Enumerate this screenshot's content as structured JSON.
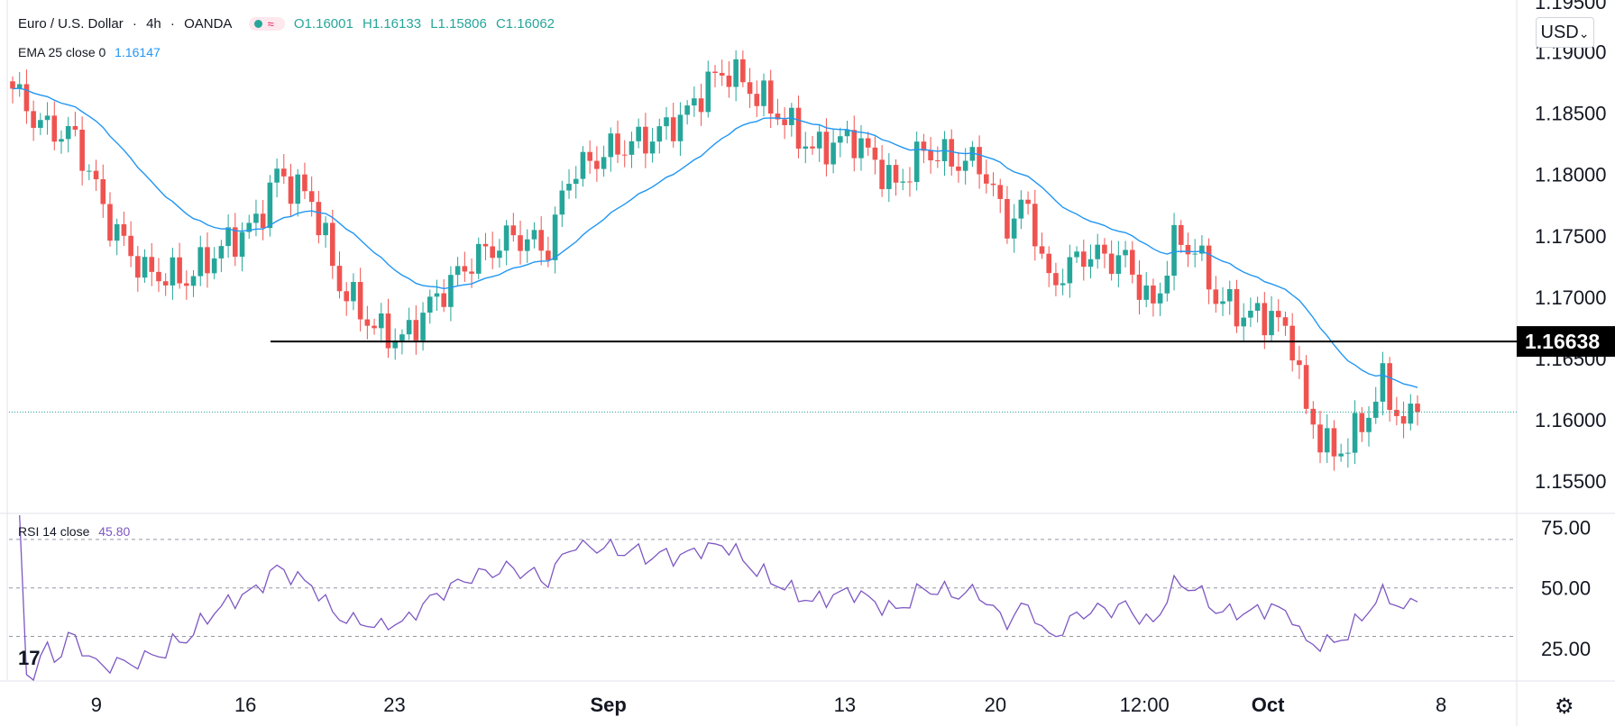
{
  "header": {
    "symbol": "Euro / U.S. Dollar",
    "interval": "4h",
    "exchange": "OANDA",
    "status_icon": "wave-icon",
    "status_glyph": "≈",
    "ohlc": {
      "o": "O1.16001",
      "h": "H1.16133",
      "l": "L1.15806",
      "c": "C1.16062"
    }
  },
  "ema_legend": {
    "label": "EMA 25 close 0",
    "value": "1.16147"
  },
  "rsi_legend": {
    "label": "RSI 14 close",
    "value": "45.80"
  },
  "currency": "USD",
  "currency_chevron": "⌄",
  "logo_text": "17",
  "settings_glyph": "⚙",
  "colors": {
    "up": "#26a69a",
    "down": "#ef5350",
    "ema": "#2196f3",
    "rsi": "#7e57c2",
    "support": "#000000",
    "last_price": "#26a69a"
  },
  "chart_data": [
    {
      "type": "candlestick",
      "title": "Euro / U.S. Dollar · 4h · OANDA",
      "ylim": [
        1.1525,
        1.1935
      ],
      "y_ticks": [
        "1.19000",
        "1.18500",
        "1.18000",
        "1.17500",
        "1.17000",
        "1.16500",
        "1.16000",
        "1.15500"
      ],
      "y_tick_values": [
        1.19,
        1.185,
        1.18,
        1.175,
        1.17,
        1.165,
        1.16,
        1.155
      ],
      "top_partial_tick": "1.19500",
      "x_ticks": [
        {
          "label": "9",
          "t": 0.058,
          "bold": false
        },
        {
          "label": "16",
          "t": 0.157,
          "bold": false
        },
        {
          "label": "23",
          "t": 0.256,
          "bold": false
        },
        {
          "label": "Sep",
          "t": 0.398,
          "bold": true
        },
        {
          "label": "13",
          "t": 0.555,
          "bold": false
        },
        {
          "label": "20",
          "t": 0.655,
          "bold": false
        },
        {
          "label": "12:00",
          "t": 0.754,
          "bold": false
        },
        {
          "label": "Oct",
          "t": 0.836,
          "bold": true
        },
        {
          "label": "8",
          "t": 0.951,
          "bold": false
        }
      ],
      "support_level": {
        "label": "1.16638",
        "value": 1.16638
      },
      "last_price": 1.16062,
      "close_keypoints": [
        [
          0,
          1.187
        ],
        [
          4,
          1.184
        ],
        [
          9,
          1.183
        ],
        [
          14,
          1.176
        ],
        [
          19,
          1.172
        ],
        [
          25,
          1.1715
        ],
        [
          30,
          1.174
        ],
        [
          35,
          1.176
        ],
        [
          38,
          1.18
        ],
        [
          43,
          1.178
        ],
        [
          47,
          1.171
        ],
        [
          52,
          1.1675
        ],
        [
          56,
          1.1665
        ],
        [
          61,
          1.17
        ],
        [
          66,
          1.173
        ],
        [
          72,
          1.175
        ],
        [
          77,
          1.174
        ],
        [
          80,
          1.18
        ],
        [
          86,
          1.182
        ],
        [
          92,
          1.183
        ],
        [
          97,
          1.185
        ],
        [
          100,
          1.1875
        ],
        [
          103,
          1.1885
        ],
        [
          106,
          1.187
        ],
        [
          110,
          1.185
        ],
        [
          115,
          1.182
        ],
        [
          121,
          1.183
        ],
        [
          127,
          1.179
        ],
        [
          131,
          1.182
        ],
        [
          136,
          1.181
        ],
        [
          139,
          1.181
        ],
        [
          143,
          1.176
        ],
        [
          146,
          1.1775
        ],
        [
          149,
          1.171
        ],
        [
          154,
          1.1735
        ],
        [
          160,
          1.173
        ],
        [
          164,
          1.169
        ],
        [
          167,
          1.1745
        ],
        [
          170,
          1.174
        ],
        [
          173,
          1.17
        ],
        [
          177,
          1.1685
        ],
        [
          181,
          1.1685
        ],
        [
          184,
          1.1665
        ],
        [
          186,
          1.1605
        ],
        [
          190,
          1.157
        ],
        [
          194,
          1.1595
        ],
        [
          197,
          1.163
        ],
        [
          200,
          1.1595
        ],
        [
          202,
          1.1606
        ]
      ],
      "ema_period": 25
    },
    {
      "type": "line",
      "title": "RSI 14 close",
      "ylim": [
        12,
        80
      ],
      "y_ticks": [
        "75.00",
        "50.00",
        "25.00"
      ],
      "bands": [
        70,
        50,
        30
      ],
      "series": [
        {
          "name": "RSI 14",
          "derived_from": "close",
          "last": 45.8
        }
      ]
    }
  ]
}
